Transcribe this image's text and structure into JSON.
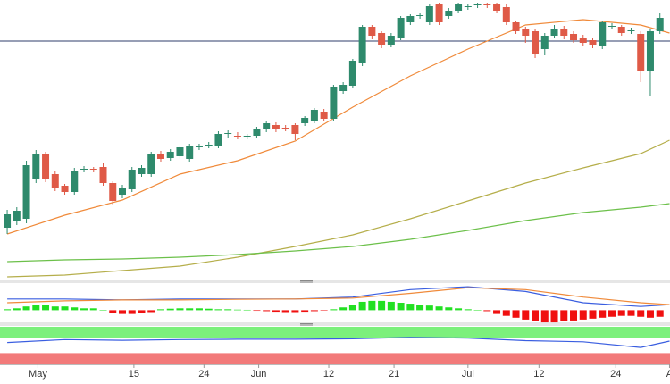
{
  "chart_data": [
    {
      "type": "candlestick",
      "x": [
        0,
        1,
        2,
        3,
        4,
        5,
        6,
        7,
        8,
        9,
        10,
        11,
        12,
        13,
        14,
        15,
        16,
        17,
        18,
        19,
        20,
        21,
        22,
        23,
        24,
        25,
        26,
        27,
        28,
        29,
        30,
        31,
        32,
        33,
        34,
        35,
        36,
        37,
        38,
        39,
        40,
        41,
        42,
        43,
        44,
        45,
        46,
        47,
        48,
        49,
        50,
        51,
        52,
        53,
        54,
        55,
        56,
        57,
        58,
        59,
        60,
        61,
        62,
        63,
        64,
        65,
        66,
        67,
        68
      ],
      "open": [
        65,
        72,
        75,
        120,
        148,
        125,
        112,
        105,
        130,
        131,
        133,
        115,
        102,
        108,
        125,
        125,
        148,
        143,
        145,
        142,
        155,
        157,
        157,
        170,
        168,
        167,
        168,
        175,
        180,
        177,
        180,
        182,
        185,
        195,
        187,
        218,
        224,
        250,
        290,
        283,
        270,
        278,
        295,
        302,
        295,
        315,
        302,
        308,
        312,
        314,
        315,
        315,
        312,
        295,
        288,
        285,
        265,
        280,
        288,
        282,
        278,
        275,
        268,
        290,
        290,
        285,
        282,
        240,
        285
      ],
      "high": [
        85,
        88,
        140,
        152,
        150,
        128,
        114,
        132,
        134,
        133,
        137,
        117,
        113,
        133,
        135,
        150,
        151,
        153,
        157,
        159,
        159,
        161,
        173,
        174,
        172,
        170,
        178,
        185,
        183,
        180,
        182,
        190,
        199,
        198,
        225,
        228,
        254,
        292,
        292,
        285,
        283,
        302,
        304,
        305,
        315,
        317,
        311,
        317,
        315,
        317,
        317,
        317,
        315,
        297,
        290,
        288,
        283,
        292,
        291,
        285,
        281,
        278,
        297,
        294,
        292,
        289,
        285,
        288,
        305
      ],
      "low": [
        58,
        68,
        70,
        115,
        116,
        106,
        102,
        102,
        127,
        127,
        112,
        90,
        98,
        105,
        122,
        122,
        139,
        140,
        142,
        139,
        152,
        154,
        154,
        166,
        164,
        164,
        165,
        172,
        172,
        173,
        163,
        179,
        182,
        184,
        184,
        215,
        221,
        246,
        276,
        266,
        267,
        275,
        292,
        299,
        292,
        292,
        299,
        305,
        309,
        311,
        311,
        305,
        292,
        282,
        272,
        255,
        258,
        277,
        276,
        272,
        269,
        266,
        265,
        287,
        280,
        282,
        228,
        212,
        282
      ],
      "close": [
        80,
        84,
        135,
        148,
        120,
        110,
        105,
        128,
        131,
        130,
        115,
        95,
        110,
        130,
        132,
        148,
        142,
        150,
        155,
        157,
        156,
        158,
        170,
        171,
        167,
        168,
        175,
        182,
        175,
        176,
        170,
        188,
        197,
        187,
        223,
        225,
        252,
        290,
        280,
        270,
        280,
        300,
        302,
        303,
        313,
        295,
        308,
        315,
        313,
        315,
        314,
        308,
        295,
        285,
        280,
        260,
        280,
        288,
        280,
        275,
        272,
        270,
        295,
        291,
        283,
        286,
        240,
        285,
        300
      ],
      "up_color": "#2e8a6c",
      "down_color": "#df5a47",
      "xlim": [
        -0.75,
        69.05
      ],
      "ylim": [
        8,
        320
      ],
      "xticks": [
        {
          "value": 3.2,
          "label": "May"
        },
        {
          "value": 13.2,
          "label": "15"
        },
        {
          "value": 20.5,
          "label": "24"
        },
        {
          "value": 26.2,
          "label": "Jun"
        },
        {
          "value": 33.5,
          "label": "12"
        },
        {
          "value": 40.3,
          "label": "21"
        },
        {
          "value": 48,
          "label": "Jul"
        },
        {
          "value": 55.4,
          "label": "12"
        },
        {
          "value": 63.4,
          "label": "24"
        },
        {
          "value": 69,
          "label": "A"
        }
      ],
      "hline": {
        "value": 274,
        "color": "#2f3d6b"
      },
      "lines": [
        {
          "color": "#f08a3a",
          "x": [
            0,
            6,
            12,
            18,
            24,
            30,
            36,
            42,
            48,
            54,
            60,
            66,
            69
          ],
          "values": [
            58,
            79,
            96,
            125,
            140,
            162,
            200,
            235,
            265,
            292,
            298,
            292,
            283
          ]
        },
        {
          "color": "#b5ae4a",
          "x": [
            0,
            6,
            12,
            18,
            24,
            30,
            36,
            42,
            48,
            54,
            60,
            66,
            69
          ],
          "values": [
            10,
            12,
            17,
            22,
            32,
            44,
            57,
            75,
            95,
            115,
            132,
            148,
            163
          ]
        },
        {
          "color": "#6cc04a",
          "x": [
            0,
            6,
            12,
            18,
            24,
            30,
            36,
            42,
            48,
            54,
            60,
            66,
            69
          ],
          "values": [
            27,
            29,
            30,
            32,
            35,
            39,
            44,
            52,
            62,
            73,
            82,
            88,
            92
          ]
        }
      ]
    },
    {
      "type": "macd",
      "ylim": [
        -6,
        14
      ],
      "histogram": [
        0.5,
        1,
        2,
        3,
        3,
        2,
        2,
        1.5,
        1,
        1,
        0,
        -1.5,
        -2,
        -2,
        -1.5,
        -1,
        0.5,
        0.8,
        1,
        1,
        1,
        0.8,
        0.5,
        0.5,
        0.3,
        0.2,
        -0.3,
        -0.5,
        -0.8,
        -1,
        -1,
        -0.8,
        -0.5,
        -0.2,
        0.5,
        1.5,
        3,
        4.5,
        5,
        5,
        4.5,
        4,
        3.5,
        3,
        2.5,
        2,
        1.5,
        1,
        0.5,
        0,
        -0.5,
        -2,
        -3,
        -4,
        -5,
        -6,
        -6.5,
        -6.5,
        -6,
        -5.5,
        -5,
        -4.5,
        -4,
        -3.5,
        -3,
        -3,
        -3.5,
        -4,
        -3.5
      ],
      "up_color": "#22e022",
      "down_color": "#f01010",
      "series": [
        {
          "color": "#3a5ee0",
          "x": [
            0,
            6,
            12,
            18,
            24,
            30,
            36,
            42,
            48,
            54,
            60,
            66,
            69
          ],
          "values": [
            6,
            6,
            5.5,
            6,
            6,
            6,
            7,
            11,
            12.5,
            10,
            4,
            2,
            3
          ]
        },
        {
          "color": "#f08a3a",
          "x": [
            0,
            6,
            12,
            18,
            24,
            30,
            36,
            42,
            48,
            54,
            60,
            66,
            69
          ],
          "values": [
            4,
            5,
            5.5,
            5.5,
            5.8,
            6,
            6.5,
            9,
            12,
            11,
            7,
            4,
            3
          ]
        }
      ]
    },
    {
      "type": "rsi",
      "ylim": [
        0,
        100
      ],
      "bands": [
        {
          "from": 70,
          "to": 100,
          "color": "#7cf07c"
        },
        {
          "from": 0,
          "to": 30,
          "color": "#f27a7a"
        }
      ],
      "series": [
        {
          "color": "#3a5ee0",
          "x": [
            0,
            6,
            12,
            18,
            24,
            30,
            36,
            42,
            48,
            54,
            60,
            66,
            69
          ],
          "values": [
            58,
            66,
            64,
            66,
            67,
            67,
            68,
            72,
            70,
            63,
            60,
            45,
            62
          ]
        }
      ]
    }
  ]
}
